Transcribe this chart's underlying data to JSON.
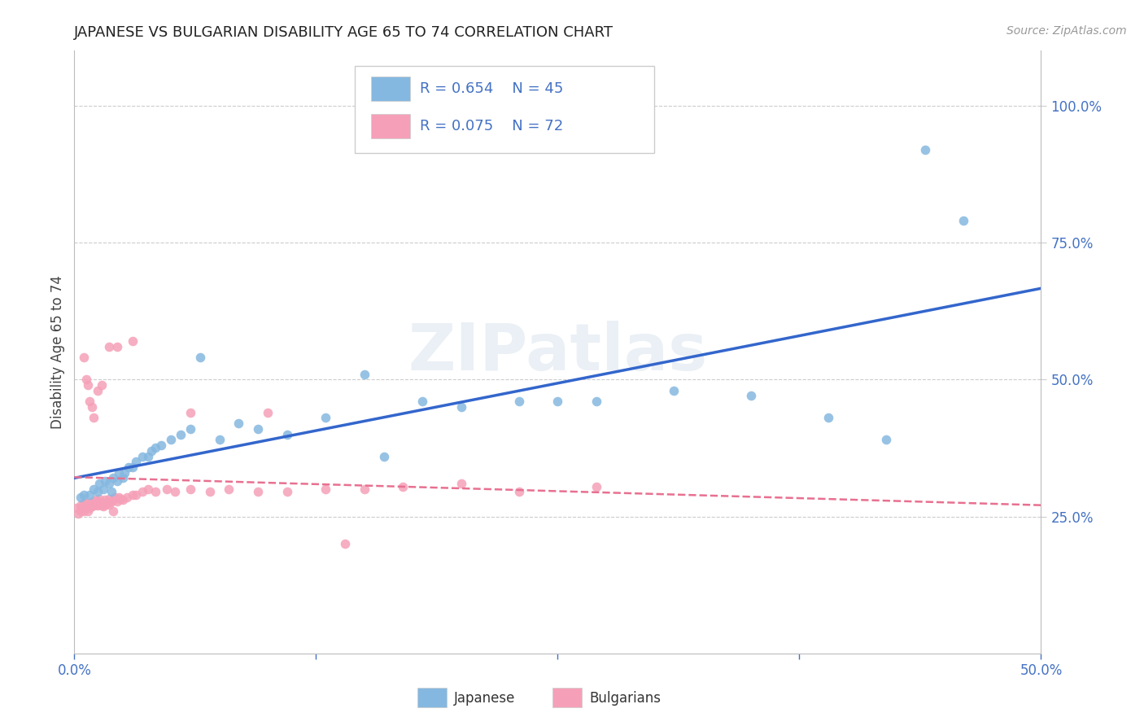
{
  "title": "JAPANESE VS BULGARIAN DISABILITY AGE 65 TO 74 CORRELATION CHART",
  "source": "Source: ZipAtlas.com",
  "ylabel": "Disability Age 65 to 74",
  "xlim": [
    0.0,
    0.5
  ],
  "ylim": [
    0.0,
    1.1
  ],
  "xticks": [
    0.0,
    0.125,
    0.25,
    0.375,
    0.5
  ],
  "xticklabels": [
    "0.0%",
    "",
    "",
    "",
    "50.0%"
  ],
  "ytick_right": [
    0.25,
    0.5,
    0.75,
    1.0
  ],
  "yticklabels_right": [
    "25.0%",
    "50.0%",
    "75.0%",
    "100.0%"
  ],
  "legend_R_japanese": "R = 0.654",
  "legend_N_japanese": "N = 45",
  "legend_R_bulgarian": "R = 0.075",
  "legend_N_bulgarian": "N = 72",
  "japanese_color": "#85b8e0",
  "bulgarian_color": "#f5a0b8",
  "japanese_line_color": "#3366cc",
  "bulgarian_line_color": "#e87090",
  "watermark": "ZIPatlas",
  "japanese_x": [
    0.003,
    0.005,
    0.008,
    0.01,
    0.012,
    0.013,
    0.015,
    0.016,
    0.018,
    0.019,
    0.02,
    0.022,
    0.023,
    0.025,
    0.026,
    0.028,
    0.03,
    0.032,
    0.035,
    0.038,
    0.04,
    0.042,
    0.045,
    0.05,
    0.055,
    0.06,
    0.065,
    0.075,
    0.085,
    0.095,
    0.11,
    0.13,
    0.16,
    0.2,
    0.23,
    0.27,
    0.31,
    0.35,
    0.39,
    0.42,
    0.25,
    0.18,
    0.15,
    0.44,
    0.46
  ],
  "japanese_y": [
    0.285,
    0.29,
    0.29,
    0.3,
    0.295,
    0.31,
    0.3,
    0.315,
    0.31,
    0.295,
    0.32,
    0.315,
    0.33,
    0.32,
    0.33,
    0.34,
    0.34,
    0.35,
    0.36,
    0.36,
    0.37,
    0.375,
    0.38,
    0.39,
    0.4,
    0.41,
    0.54,
    0.39,
    0.42,
    0.41,
    0.4,
    0.43,
    0.36,
    0.45,
    0.46,
    0.46,
    0.48,
    0.47,
    0.43,
    0.39,
    0.46,
    0.46,
    0.51,
    0.92,
    0.79
  ],
  "bulgarian_x": [
    0.001,
    0.002,
    0.003,
    0.003,
    0.004,
    0.005,
    0.005,
    0.006,
    0.006,
    0.007,
    0.007,
    0.008,
    0.008,
    0.009,
    0.009,
    0.01,
    0.01,
    0.011,
    0.011,
    0.012,
    0.012,
    0.013,
    0.013,
    0.014,
    0.015,
    0.015,
    0.016,
    0.016,
    0.017,
    0.018,
    0.018,
    0.019,
    0.02,
    0.021,
    0.022,
    0.023,
    0.024,
    0.025,
    0.027,
    0.03,
    0.032,
    0.035,
    0.038,
    0.042,
    0.048,
    0.052,
    0.06,
    0.07,
    0.08,
    0.095,
    0.11,
    0.13,
    0.15,
    0.17,
    0.2,
    0.23,
    0.27,
    0.005,
    0.006,
    0.007,
    0.008,
    0.009,
    0.01,
    0.012,
    0.014,
    0.018,
    0.022,
    0.03,
    0.06,
    0.1,
    0.14,
    0.02
  ],
  "bulgarian_y": [
    0.265,
    0.255,
    0.26,
    0.27,
    0.265,
    0.26,
    0.275,
    0.265,
    0.275,
    0.26,
    0.27,
    0.265,
    0.275,
    0.268,
    0.272,
    0.27,
    0.278,
    0.272,
    0.28,
    0.27,
    0.278,
    0.272,
    0.282,
    0.27,
    0.268,
    0.275,
    0.272,
    0.28,
    0.275,
    0.272,
    0.282,
    0.278,
    0.28,
    0.285,
    0.278,
    0.285,
    0.282,
    0.28,
    0.285,
    0.29,
    0.29,
    0.295,
    0.3,
    0.295,
    0.3,
    0.295,
    0.3,
    0.295,
    0.3,
    0.295,
    0.295,
    0.3,
    0.3,
    0.305,
    0.31,
    0.295,
    0.305,
    0.54,
    0.5,
    0.49,
    0.46,
    0.45,
    0.43,
    0.48,
    0.49,
    0.56,
    0.56,
    0.57,
    0.44,
    0.44,
    0.2,
    0.26
  ],
  "background_color": "#ffffff",
  "grid_color": "#cccccc",
  "title_color": "#222222",
  "axis_label_color": "#444444",
  "tick_color": "#4472c4"
}
